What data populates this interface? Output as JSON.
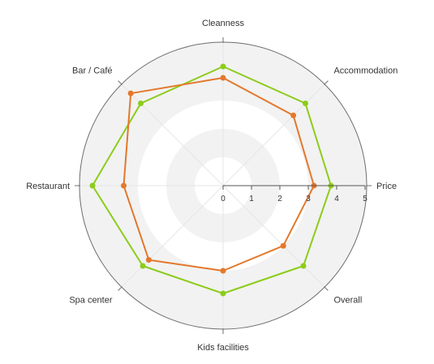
{
  "chart_data": {
    "type": "radar",
    "title": "",
    "axes": [
      "Cleanness",
      "Accommodation",
      "Price",
      "Overall",
      "Kids facilities",
      "Spa center",
      "Restaurant",
      "Bar / Café"
    ],
    "rlim": [
      0,
      5
    ],
    "ticks": [
      0,
      1,
      2,
      3,
      4,
      5
    ],
    "grid": true,
    "legend": "none",
    "series": [
      {
        "color": "#8ccc1a",
        "values": [
          4.2,
          4.1,
          3.8,
          4.0,
          3.8,
          4.0,
          4.6,
          4.1
        ]
      },
      {
        "color": "#e3782c",
        "values": [
          3.8,
          3.5,
          3.2,
          3.0,
          3.0,
          3.7,
          3.5,
          4.6
        ]
      }
    ]
  }
}
